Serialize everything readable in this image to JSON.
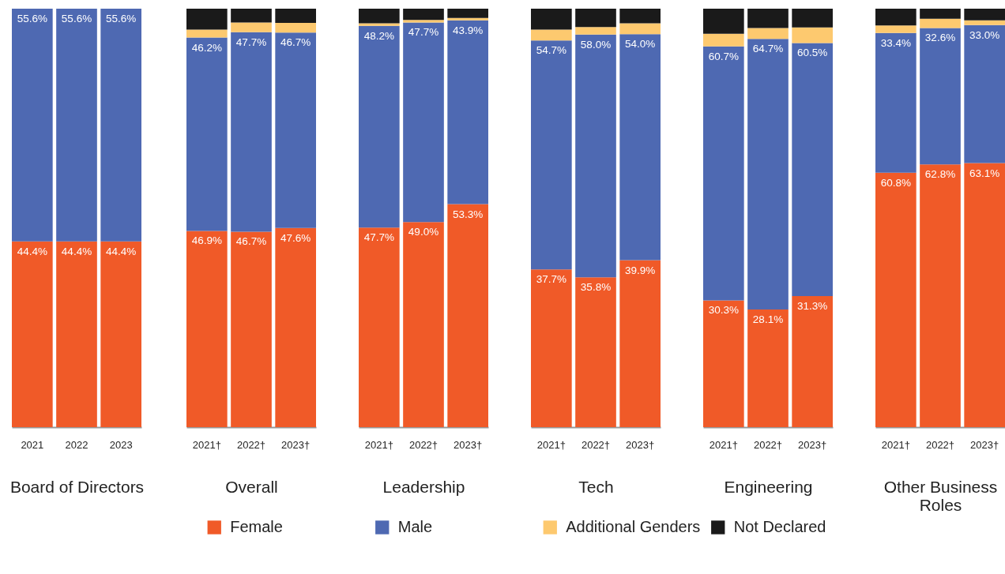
{
  "chart_data": [
    {
      "type": "bar",
      "stacked": true,
      "xlabel": "Board of Directors",
      "categories": [
        "2021",
        "2022",
        "2023"
      ],
      "ylim": [
        0,
        100
      ],
      "tick_labels": "x",
      "legend": "bottom",
      "series": [
        {
          "name": "Female",
          "color": "#f05a28",
          "values": [
            44.4,
            44.4,
            44.4
          ],
          "value_labels": [
            "44.4%",
            "44.4%",
            "44.4%"
          ]
        },
        {
          "name": "Male",
          "color": "#4e69b2",
          "values": [
            55.6,
            55.6,
            55.6
          ],
          "value_labels": [
            "55.6%",
            "55.6%",
            "55.6%"
          ]
        },
        {
          "name": "Additional Genders",
          "color": "#fdc96f",
          "values": [
            0,
            0,
            0
          ]
        },
        {
          "name": "Not Declared",
          "color": "#1a1a1a",
          "values": [
            0,
            0,
            0
          ]
        }
      ]
    },
    {
      "type": "bar",
      "stacked": true,
      "xlabel": "Overall",
      "categories": [
        "2021†",
        "2022†",
        "2023†"
      ],
      "ylim": [
        0,
        100
      ],
      "tick_labels": "x",
      "series": [
        {
          "color": "#f05a28",
          "values": [
            46.9,
            46.7,
            47.6
          ],
          "value_labels": [
            "46.9%",
            "46.7%",
            "47.6%"
          ]
        },
        {
          "color": "#4e69b2",
          "values": [
            46.2,
            47.7,
            46.7
          ],
          "value_labels": [
            "46.2%",
            "47.7%",
            "46.7%"
          ]
        },
        {
          "color": "#fdc96f",
          "values": [
            1.9,
            2.3,
            2.3
          ]
        },
        {
          "color": "#1a1a1a",
          "values": [
            5.0,
            3.3,
            3.4
          ]
        }
      ]
    },
    {
      "type": "bar",
      "stacked": true,
      "xlabel": "Leadership",
      "categories": [
        "2021†",
        "2022†",
        "2023†"
      ],
      "ylim": [
        0,
        100
      ],
      "tick_labels": "x",
      "series": [
        {
          "color": "#f05a28",
          "values": [
            47.7,
            49.0,
            53.3
          ],
          "value_labels": [
            "47.7%",
            "49.0%",
            "53.3%"
          ]
        },
        {
          "color": "#4e69b2",
          "values": [
            48.2,
            47.7,
            43.9
          ],
          "value_labels": [
            "48.2%",
            "47.7%",
            "43.9%"
          ]
        },
        {
          "color": "#fdc96f",
          "values": [
            0.6,
            0.6,
            0.6
          ]
        },
        {
          "color": "#1a1a1a",
          "values": [
            3.5,
            2.7,
            2.2
          ]
        }
      ]
    },
    {
      "type": "bar",
      "stacked": true,
      "xlabel": "Tech",
      "categories": [
        "2021†",
        "2022†",
        "2023†"
      ],
      "ylim": [
        0,
        100
      ],
      "tick_labels": "x",
      "series": [
        {
          "color": "#f05a28",
          "values": [
            37.7,
            35.8,
            39.9
          ],
          "value_labels": [
            "37.7%",
            "35.8%",
            "39.9%"
          ]
        },
        {
          "color": "#4e69b2",
          "values": [
            54.7,
            58.0,
            54.0
          ],
          "value_labels": [
            "54.7%",
            "58.0%",
            "54.0%"
          ]
        },
        {
          "color": "#fdc96f",
          "values": [
            2.6,
            1.8,
            2.6
          ]
        },
        {
          "color": "#1a1a1a",
          "values": [
            5.0,
            4.4,
            3.5
          ]
        }
      ]
    },
    {
      "type": "bar",
      "stacked": true,
      "xlabel": "Engineering",
      "categories": [
        "2021†",
        "2022†",
        "2023†"
      ],
      "ylim": [
        0,
        100
      ],
      "tick_labels": "x",
      "series": [
        {
          "color": "#f05a28",
          "values": [
            30.3,
            28.1,
            31.3
          ],
          "value_labels": [
            "30.3%",
            "28.1%",
            "31.3%"
          ]
        },
        {
          "color": "#4e69b2",
          "values": [
            60.7,
            64.7,
            60.5
          ],
          "value_labels": [
            "60.7%",
            "64.7%",
            "60.5%"
          ]
        },
        {
          "color": "#fdc96f",
          "values": [
            3.0,
            2.6,
            3.7
          ]
        },
        {
          "color": "#1a1a1a",
          "values": [
            6.0,
            4.6,
            4.5
          ]
        }
      ]
    },
    {
      "type": "bar",
      "stacked": true,
      "xlabel": "Other Business Roles",
      "categories": [
        "2021†",
        "2022†",
        "2023†"
      ],
      "ylim": [
        0,
        100
      ],
      "tick_labels": "x",
      "series": [
        {
          "color": "#f05a28",
          "values": [
            60.8,
            62.8,
            63.1
          ],
          "value_labels": [
            "60.8%",
            "62.8%",
            "63.1%"
          ]
        },
        {
          "color": "#4e69b2",
          "values": [
            33.4,
            32.6,
            33.0
          ],
          "value_labels": [
            "33.4%",
            "32.6%",
            "33.0%"
          ]
        },
        {
          "color": "#fdc96f",
          "values": [
            1.8,
            2.2,
            1.1
          ]
        },
        {
          "color": "#1a1a1a",
          "values": [
            4.0,
            2.4,
            2.8
          ]
        }
      ]
    }
  ]
}
